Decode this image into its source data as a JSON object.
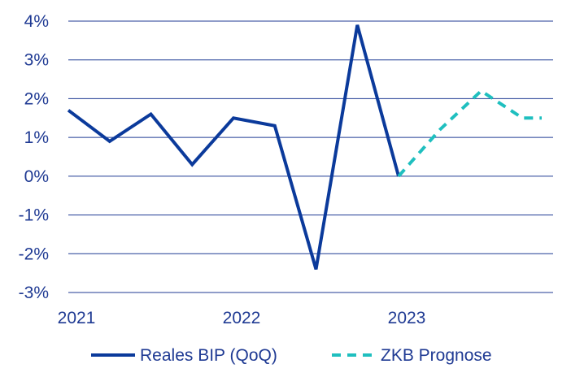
{
  "chart_data": {
    "type": "line",
    "title": "",
    "xlabel": "",
    "ylabel": "",
    "x_tick_labels": [
      "2021",
      "2022",
      "2023"
    ],
    "y_tick_labels": [
      "4%",
      "3%",
      "2%",
      "1%",
      "0%",
      "-1%",
      "-2%",
      "-3%"
    ],
    "y_ticks": [
      4,
      3,
      2,
      1,
      0,
      -1,
      -2,
      -3
    ],
    "ylim": [
      -3,
      4
    ],
    "xlim": [
      2021.0,
      2023.75
    ],
    "grid": "horizontal",
    "legend_position": "bottom",
    "series": [
      {
        "name": "Reales BIP (QoQ)",
        "style": "solid",
        "color": "#0b3a9b",
        "x": [
          2021.0,
          2021.25,
          2021.5,
          2021.75,
          2022.0,
          2022.25,
          2022.5,
          2022.75,
          2023.0
        ],
        "values": [
          1.7,
          0.9,
          1.6,
          0.3,
          1.5,
          1.3,
          -2.4,
          3.9,
          0.0
        ]
      },
      {
        "name": "ZKB Prognose",
        "style": "dashed",
        "color": "#1fbfbf",
        "x": [
          2023.0,
          2023.25,
          2023.5,
          2023.75,
          2024.0
        ],
        "values": [
          0.0,
          1.2,
          2.2,
          1.5,
          1.5
        ]
      }
    ]
  }
}
